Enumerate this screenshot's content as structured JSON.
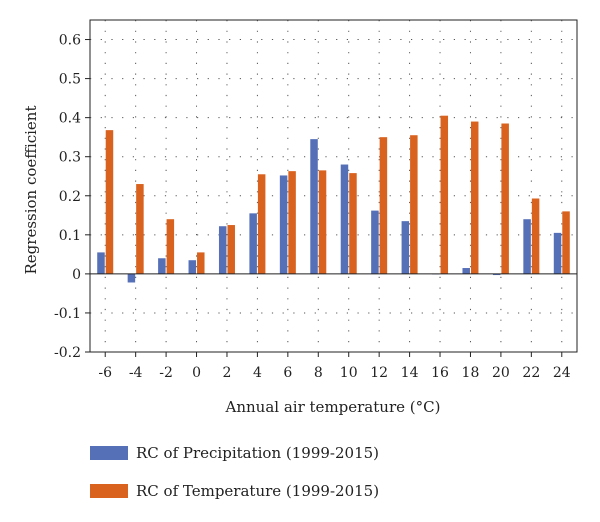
{
  "chart_data": {
    "type": "bar",
    "xlabel": "Annual air temperature (°C)",
    "ylabel": "Regression coefficient",
    "categories": [
      "-6",
      "-4",
      "-2",
      "0",
      "2",
      "4",
      "6",
      "8",
      "10",
      "12",
      "14",
      "16",
      "18",
      "20",
      "22",
      "24"
    ],
    "series": [
      {
        "name": "RC of Precipitation (1999-2015)",
        "color": "#5670b8",
        "values": [
          0.055,
          -0.022,
          0.04,
          0.035,
          0.122,
          0.155,
          0.252,
          0.345,
          0.28,
          0.162,
          0.135,
          0.0,
          0.015,
          -0.003,
          0.14,
          0.105
        ]
      },
      {
        "name": "RC of Temperature (1999-2015)",
        "color": "#d9621e",
        "values": [
          0.368,
          0.23,
          0.14,
          0.055,
          0.125,
          0.255,
          0.263,
          0.265,
          0.258,
          0.35,
          0.355,
          0.405,
          0.39,
          0.385,
          0.193,
          0.16
        ]
      }
    ],
    "ylim": [
      -0.2,
      0.65
    ],
    "yticks": [
      "-0.2",
      "-0.1",
      "0",
      "0.1",
      "0.2",
      "0.3",
      "0.4",
      "0.5",
      "0.6"
    ],
    "grid": "dotted",
    "legend_position": "bottom-left"
  }
}
